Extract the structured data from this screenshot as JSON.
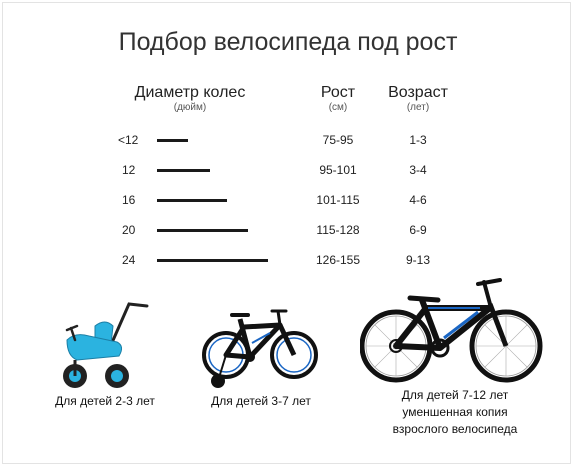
{
  "title": "Подбор велосипеда под рост",
  "headers": {
    "wheel": {
      "label": "Диаметр колес",
      "unit": "(дюйм)"
    },
    "height": {
      "label": "Рост",
      "unit": "(см)"
    },
    "age": {
      "label": "Возраст",
      "unit": "(лет)"
    }
  },
  "rows": [
    {
      "wheel": "<12",
      "height": "75-95",
      "age": "1-3"
    },
    {
      "wheel": "12",
      "height": "95-101",
      "age": "3-4"
    },
    {
      "wheel": "16",
      "height": "101-115",
      "age": "4-6"
    },
    {
      "wheel": "20",
      "height": "115-128",
      "age": "6-9"
    },
    {
      "wheel": "24",
      "height": "126-155",
      "age": "9-13"
    }
  ],
  "captions": {
    "tricycle": "Для детей 2-3 лет",
    "kids_bike": "Для детей 3-7 лет",
    "teen_bike": [
      "Для детей 7-12 лет",
      "уменшенная копия",
      "взрослого велосипеда"
    ]
  },
  "colors": {
    "tricycle_body": "#2bb3e0",
    "frame_blue": "#1a66c4",
    "frame_dark": "#111111"
  }
}
